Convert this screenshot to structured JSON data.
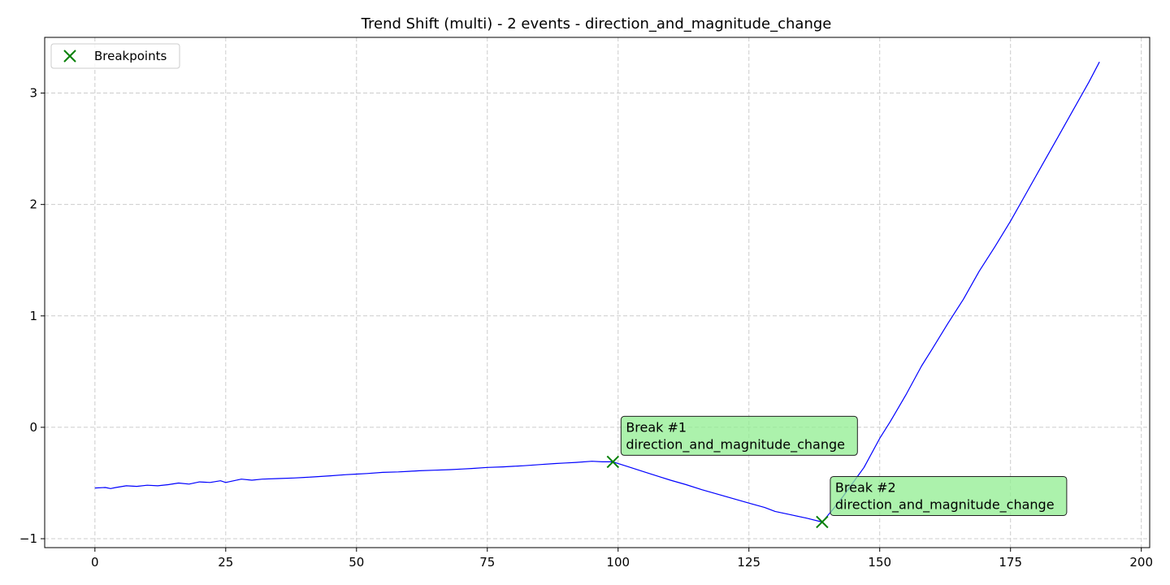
{
  "chart_data": {
    "type": "line",
    "title": "Trend Shift (multi) - 2 events - direction_and_magnitude_change",
    "xlabel": "",
    "ylabel": "",
    "xlim": [
      -9.6,
      201.6
    ],
    "ylim": [
      -1.08,
      3.5
    ],
    "xticks": [
      0,
      25,
      50,
      75,
      100,
      125,
      150,
      175,
      200
    ],
    "yticks": [
      -1,
      0,
      1,
      2,
      3
    ],
    "xtick_labels": [
      "0",
      "25",
      "50",
      "75",
      "100",
      "125",
      "150",
      "175",
      "200"
    ],
    "ytick_labels": [
      "−1",
      "0",
      "1",
      "2",
      "3"
    ],
    "grid": true,
    "legend": {
      "placement": "top-left",
      "entries": [
        "Breakpoints"
      ]
    },
    "series": [
      {
        "color": "#0000ff",
        "x": [
          0,
          2,
          3,
          4,
          6,
          8,
          10,
          12,
          14,
          16,
          18,
          20,
          22,
          24,
          25,
          26,
          28,
          30,
          32,
          35,
          38,
          40,
          42,
          45,
          48,
          50,
          52,
          55,
          58,
          60,
          62,
          65,
          68,
          70,
          72,
          75,
          78,
          80,
          82,
          85,
          88,
          90,
          92,
          95,
          97,
          99,
          102,
          105,
          108,
          110,
          113,
          116,
          119,
          122,
          125,
          128,
          130,
          133,
          136,
          139,
          141,
          143,
          145,
          147,
          150,
          152,
          155,
          158,
          160,
          163,
          166,
          169,
          172,
          175,
          178,
          181,
          184,
          187,
          190,
          192
        ],
        "y": [
          -0.545,
          -0.54,
          -0.55,
          -0.54,
          -0.525,
          -0.53,
          -0.52,
          -0.525,
          -0.515,
          -0.5,
          -0.51,
          -0.49,
          -0.495,
          -0.48,
          -0.495,
          -0.485,
          -0.465,
          -0.475,
          -0.465,
          -0.46,
          -0.455,
          -0.45,
          -0.445,
          -0.435,
          -0.425,
          -0.42,
          -0.415,
          -0.405,
          -0.4,
          -0.395,
          -0.39,
          -0.385,
          -0.38,
          -0.375,
          -0.37,
          -0.36,
          -0.355,
          -0.35,
          -0.345,
          -0.335,
          -0.325,
          -0.32,
          -0.315,
          -0.305,
          -0.31,
          -0.31,
          -0.355,
          -0.4,
          -0.445,
          -0.475,
          -0.515,
          -0.56,
          -0.6,
          -0.64,
          -0.68,
          -0.72,
          -0.755,
          -0.785,
          -0.815,
          -0.85,
          -0.74,
          -0.62,
          -0.49,
          -0.36,
          -0.1,
          0.05,
          0.29,
          0.55,
          0.7,
          0.93,
          1.15,
          1.4,
          1.62,
          1.85,
          2.1,
          2.35,
          2.6,
          2.85,
          3.1,
          3.28
        ]
      }
    ],
    "breakpoints": {
      "label": "Breakpoints",
      "color": "#008000",
      "points": [
        {
          "x": 99,
          "y": -0.31
        },
        {
          "x": 139,
          "y": -0.85
        }
      ]
    },
    "annotations": [
      {
        "lines": [
          "Break #1",
          "direction_and_magnitude_change"
        ]
      },
      {
        "lines": [
          "Break #2",
          "direction_and_magnitude_change"
        ]
      }
    ]
  }
}
